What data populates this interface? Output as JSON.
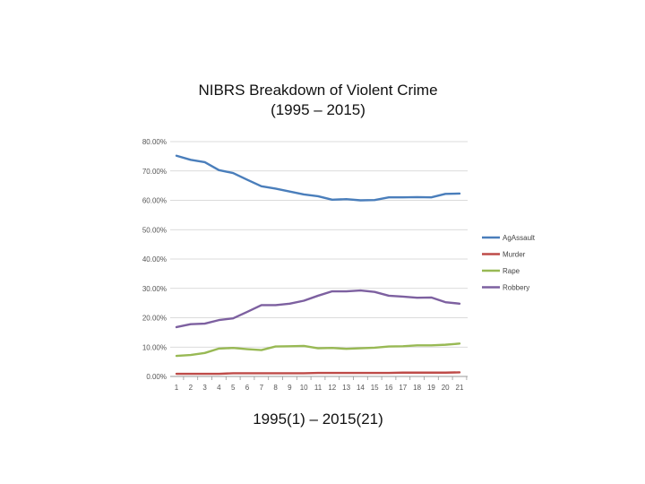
{
  "page": {
    "title_line1": "NIBRS Breakdown of Violent Crime",
    "title_line2": "(1995 – 2015)",
    "bottom_caption": "1995(1) – 2015(21)"
  },
  "chart_data": {
    "type": "line",
    "title": "NIBRS Breakdown of Violent Crime (1995 – 2015)",
    "xlabel": "1995(1) – 2015(21)",
    "ylabel": "",
    "x": [
      1,
      2,
      3,
      4,
      5,
      6,
      7,
      8,
      9,
      10,
      11,
      12,
      13,
      14,
      15,
      16,
      17,
      18,
      19,
      20,
      21
    ],
    "ylim": [
      0,
      80
    ],
    "yticks": [
      0,
      10,
      20,
      30,
      40,
      50,
      60,
      70,
      80
    ],
    "ytick_labels": [
      "0.00%",
      "10.00%",
      "20.00%",
      "30.00%",
      "40.00%",
      "50.00%",
      "60.00%",
      "70.00%",
      "80.00%"
    ],
    "grid": "horizontal",
    "legend_position": "right",
    "series": [
      {
        "name": "AgAssault",
        "color": "#4a7ebb",
        "values": [
          75.2,
          73.8,
          73.0,
          70.3,
          69.3,
          67.0,
          64.8,
          64.0,
          63.0,
          62.0,
          61.4,
          60.2,
          60.4,
          60.0,
          60.1,
          61.0,
          61.0,
          61.1,
          61.0,
          62.2,
          62.3
        ]
      },
      {
        "name": "Murder",
        "color": "#be4b48",
        "values": [
          0.9,
          0.9,
          0.9,
          0.9,
          1.1,
          1.1,
          1.1,
          1.1,
          1.1,
          1.1,
          1.2,
          1.2,
          1.2,
          1.2,
          1.2,
          1.2,
          1.3,
          1.3,
          1.3,
          1.3,
          1.4
        ]
      },
      {
        "name": "Rape",
        "color": "#98b954",
        "values": [
          7.0,
          7.3,
          8.0,
          9.5,
          9.7,
          9.3,
          9.0,
          10.2,
          10.3,
          10.4,
          9.6,
          9.7,
          9.4,
          9.6,
          9.8,
          10.2,
          10.3,
          10.6,
          10.6,
          10.8,
          11.2
        ]
      },
      {
        "name": "Robbery",
        "color": "#7d60a0",
        "values": [
          16.8,
          17.8,
          18.0,
          19.2,
          19.8,
          22.0,
          24.3,
          24.3,
          24.8,
          25.8,
          27.5,
          29.0,
          29.0,
          29.3,
          28.8,
          27.5,
          27.2,
          26.8,
          26.9,
          25.3,
          24.8
        ]
      }
    ]
  }
}
